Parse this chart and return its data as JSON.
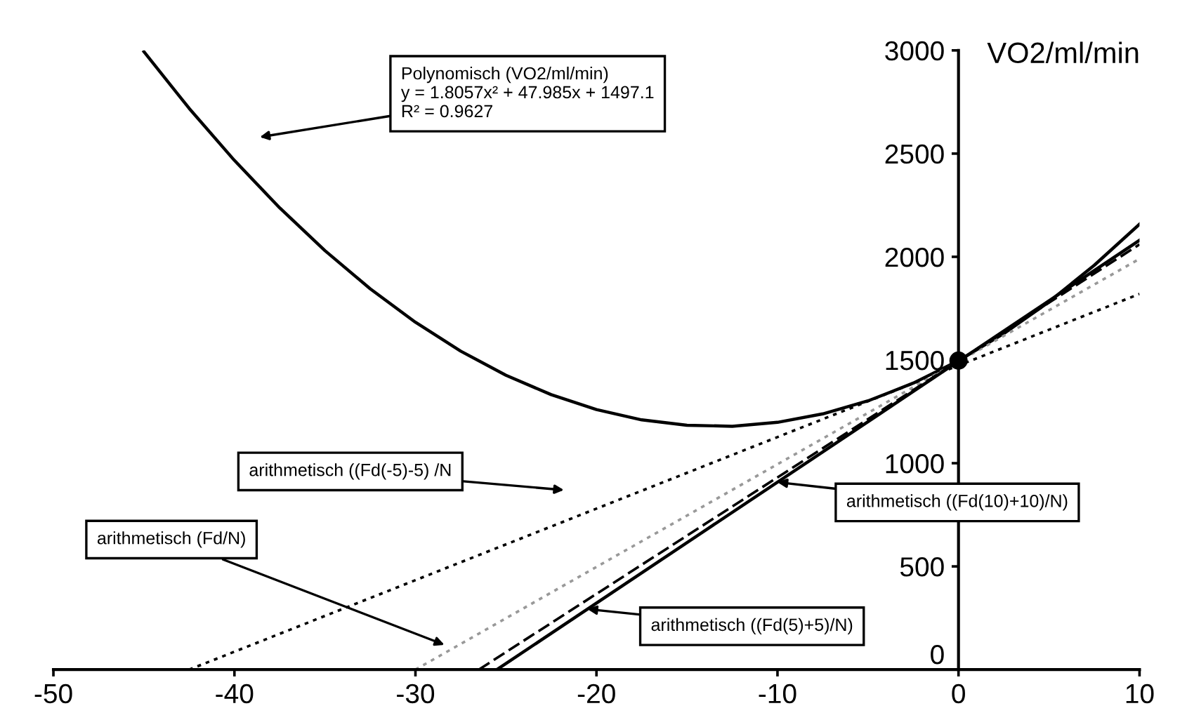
{
  "chart_data": {
    "type": "line",
    "ylabel": "VO2/ml/min",
    "xlim": [
      -50,
      10
    ],
    "xticks": [
      -50,
      -40,
      -30,
      -20,
      -10,
      0,
      10
    ],
    "ylim": [
      0,
      3000
    ],
    "yticks": [
      0,
      500,
      1000,
      1500,
      2000,
      2500,
      3000
    ],
    "grid": false,
    "series": [
      {
        "color": "#000000",
        "line_style": "solid",
        "x": [
          -45,
          -42.5,
          -40,
          -37.5,
          -35,
          -32.5,
          -30,
          -27.5,
          -25,
          -22.5,
          -20,
          -17.5,
          -15,
          -12.5,
          -10,
          -7.5,
          -5,
          -2.5,
          0,
          2.5,
          5,
          7.5,
          10
        ],
        "values": [
          2994,
          2719,
          2467,
          2237,
          2030,
          1845,
          1683,
          1543,
          1426,
          1332,
          1260,
          1210,
          1184,
          1179,
          1198,
          1239,
          1302,
          1388,
          1497,
          1628,
          1782,
          1959,
          2158
        ]
      },
      {
        "color": "#000000",
        "line_style": "dotted",
        "x": [
          -42.5,
          10
        ],
        "values": [
          0,
          1820
        ]
      },
      {
        "color": "#999999",
        "line_style": "dotted",
        "x": [
          -30,
          10
        ],
        "values": [
          0,
          1990
        ]
      },
      {
        "color": "#000000",
        "line_style": "dashed",
        "x": [
          -26.5,
          10
        ],
        "values": [
          0,
          2060
        ]
      },
      {
        "color": "#000000",
        "line_style": "solid",
        "x": [
          -25.5,
          10
        ],
        "values": [
          0,
          2080
        ]
      },
      {
        "type": "scatter",
        "color": "#000000",
        "marker": "circle",
        "x": [
          0
        ],
        "values": [
          1497
        ]
      }
    ],
    "annotations": [
      "Polynomisch (VO2/ml/min)\ny = 1.8057x² + 47.985x + 1497.1\nR² = 0.9627",
      "arithmetisch ((Fd(-5)-5) /N",
      "arithmetisch (Fd/N)",
      {
        "text": "arithmetisch ((Fd(10)+10)/N)",
        "x": -10,
        "y": 908
      },
      {
        "text": "arithmetisch ((Fd(5)+5)/N)",
        "x": -20.5,
        "y": 293
      }
    ]
  }
}
